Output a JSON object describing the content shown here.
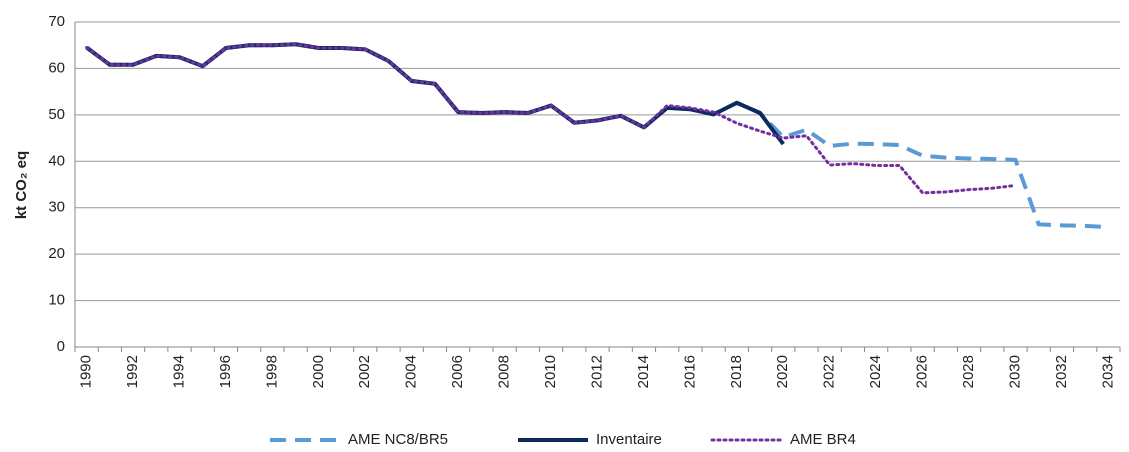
{
  "chart_data": {
    "type": "line",
    "y_label": "kt  CO₂ eq",
    "categories": [
      1990,
      null,
      1992,
      null,
      1994,
      null,
      1996,
      null,
      1998,
      null,
      2000,
      null,
      2002,
      null,
      2004,
      null,
      2006,
      null,
      2008,
      null,
      2010,
      null,
      2012,
      null,
      2014,
      null,
      2016,
      null,
      2018,
      null,
      2020,
      null,
      2022,
      null,
      2024,
      null,
      2026,
      null,
      2028,
      null,
      2030,
      null,
      2032,
      null,
      2034
    ],
    "ylim": [
      0,
      70
    ],
    "yticks": [
      0,
      10,
      20,
      30,
      40,
      50,
      60,
      70
    ],
    "grid": true,
    "legend": "bottom",
    "series": [
      {
        "name": "AME NC8/BR5",
        "color": "#5b9bd5",
        "style": "dashed",
        "values": [
          64.5,
          60.8,
          60.8,
          62.7,
          62.4,
          60.5,
          64.4,
          65,
          65,
          65.2,
          64.4,
          64.4,
          64.1,
          61.6,
          57.3,
          56.7,
          50.6,
          50.4,
          50.6,
          50.4,
          52,
          48.3,
          48.8,
          49.8,
          47.3,
          51.5,
          51.2,
          50.1,
          52.6,
          50.4,
          45.2,
          46.8,
          43.3,
          43.8,
          43.7,
          43.5,
          41.2,
          40.8,
          40.6,
          40.5,
          40.3,
          26.4,
          26.2,
          26.1,
          25.8
        ]
      },
      {
        "name": "Inventaire",
        "color": "#0d2a5c",
        "style": "solid",
        "values": [
          64.5,
          60.8,
          60.8,
          62.7,
          62.4,
          60.5,
          64.4,
          65,
          65,
          65.2,
          64.4,
          64.4,
          64.1,
          61.6,
          57.3,
          56.7,
          50.6,
          50.4,
          50.6,
          50.4,
          52,
          48.3,
          48.8,
          49.8,
          47.3,
          51.5,
          51.2,
          50.1,
          52.6,
          50.4,
          43.7,
          null,
          null,
          null,
          null,
          null,
          null,
          null,
          null,
          null,
          null,
          null,
          null,
          null,
          null
        ]
      },
      {
        "name": "AME BR4",
        "color": "#7030a0",
        "style": "dotted",
        "values": [
          64.5,
          60.8,
          60.8,
          62.7,
          62.4,
          60.5,
          64.4,
          65,
          65,
          65.2,
          64.4,
          64.4,
          64.1,
          61.6,
          57.3,
          56.7,
          50.6,
          50.4,
          50.6,
          50.4,
          52,
          48.3,
          48.8,
          49.8,
          47.3,
          52,
          51.5,
          50.6,
          48.2,
          46.5,
          45,
          45.5,
          39.2,
          39.5,
          39.1,
          39.1,
          33.2,
          33.4,
          33.9,
          34.2,
          34.8,
          null,
          null,
          null,
          null
        ]
      }
    ]
  }
}
